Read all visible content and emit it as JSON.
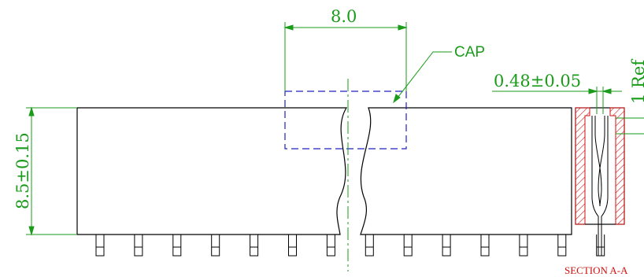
{
  "dimensions": {
    "width_label": "8.0",
    "height_label": "8.5±0.15",
    "pitch_label": "0.48±0.05",
    "ref_label": "1 Ref"
  },
  "callouts": {
    "cap_label": "CAP"
  },
  "section": {
    "label": "SECTION A-A"
  },
  "colors": {
    "dimension": "#1a9b1a",
    "outline": "#000000",
    "cap_dashed": "#2020c0",
    "centerline": "#1a9b1a",
    "hatch": "#d01010"
  },
  "pins": {
    "count": 14
  }
}
